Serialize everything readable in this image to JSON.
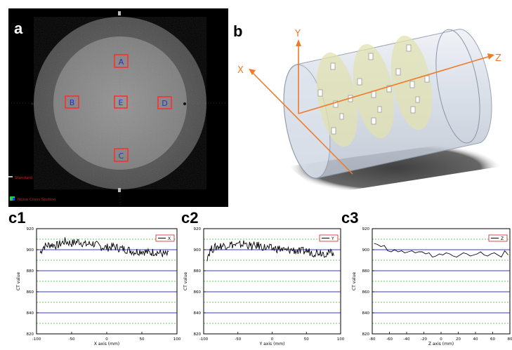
{
  "figure": {
    "labels": {
      "a": "a",
      "b": "b",
      "c1": "c1",
      "c2": "c2",
      "c3": "c3"
    }
  },
  "ct_image": {
    "rois": [
      "A",
      "B",
      "E",
      "D",
      "C"
    ],
    "overlay_text": [
      "Standard",
      "Noise Cross Section"
    ],
    "colors": {
      "background": "#000000",
      "phantom_outer": "#5a5a5a",
      "phantom_inner": "#8a8a8a",
      "roi_box": "#ff2a2a",
      "roi_text": "#2233cc",
      "overlay_text": "#d02020"
    }
  },
  "diagram_3d": {
    "axis_labels": {
      "x": "X",
      "y": "Y",
      "z": "Z"
    },
    "colors": {
      "axis": "#f07a2a",
      "cylinder": "#c9d3e0",
      "disk": "#e2e2b0",
      "shadow": "#303030"
    }
  },
  "chart_data": [
    {
      "type": "line",
      "xlabel": "X axis (mm)",
      "ylabel": "CT value",
      "xlim": [
        -100,
        100
      ],
      "ylim": [
        820,
        920
      ],
      "xticks": [
        "-100",
        "-50",
        "0",
        "50",
        "100"
      ],
      "yticks": [
        "920",
        "900",
        "880",
        "860",
        "840",
        "820"
      ],
      "legend": "X",
      "legend_position": "top-right",
      "blue_lines": [
        900,
        880,
        860,
        840
      ],
      "green_dashed_lines": [
        910,
        890,
        870,
        850,
        830
      ],
      "series": [
        {
          "x": [
            -95,
            -90,
            -80,
            -70,
            -60,
            -50,
            -40,
            -30,
            -20,
            -10,
            0,
            10,
            20,
            30,
            40,
            50,
            60,
            70,
            80,
            88
          ],
          "y": [
            897,
            903,
            905,
            904,
            908,
            906,
            908,
            905,
            906,
            903,
            902,
            903,
            901,
            900,
            898,
            899,
            897,
            898,
            896,
            895
          ]
        }
      ]
    },
    {
      "type": "line",
      "xlabel": "Y axis (mm)",
      "ylabel": "CT value",
      "xlim": [
        -100,
        100
      ],
      "ylim": [
        820,
        920
      ],
      "xticks": [
        "-100",
        "-50",
        "0",
        "50",
        "100"
      ],
      "yticks": [
        "920",
        "900",
        "880",
        "860",
        "840",
        "820"
      ],
      "legend": "Y",
      "legend_position": "top-right",
      "blue_lines": [
        900,
        880,
        860,
        840
      ],
      "green_dashed_lines": [
        910,
        890,
        870,
        850,
        830
      ],
      "series": [
        {
          "x": [
            -95,
            -90,
            -80,
            -70,
            -60,
            -50,
            -40,
            -30,
            -20,
            -10,
            0,
            10,
            20,
            30,
            40,
            50,
            60,
            70,
            80,
            90
          ],
          "y": [
            893,
            900,
            903,
            904,
            905,
            904,
            906,
            903,
            904,
            902,
            901,
            901,
            899,
            900,
            898,
            899,
            897,
            898,
            896,
            898
          ]
        }
      ]
    },
    {
      "type": "line",
      "xlabel": "Z axis (mm)",
      "ylabel": "CT value",
      "xlim": [
        -80,
        80
      ],
      "ylim": [
        820,
        920
      ],
      "xticks": [
        "-80",
        "-60",
        "-40",
        "-20",
        "0",
        "20",
        "40",
        "60",
        "80"
      ],
      "yticks": [
        "920",
        "900",
        "880",
        "860",
        "840",
        "820"
      ],
      "legend": "Z",
      "legend_position": "top-right",
      "blue_lines": [
        900,
        880,
        860,
        840
      ],
      "green_dashed_lines": [
        910,
        890,
        870,
        850,
        830
      ],
      "series": [
        {
          "x": [
            -78,
            -74,
            -70,
            -66,
            -62,
            -58,
            -54,
            -50,
            -46,
            -42,
            -38,
            -34,
            -30,
            -26,
            -22,
            -18,
            -14,
            -10,
            -6,
            -2,
            2,
            6,
            10,
            14,
            18,
            22,
            26,
            30,
            34,
            38,
            42,
            46,
            50,
            54,
            58,
            62,
            66,
            70,
            74,
            78
          ],
          "y": [
            906,
            905,
            903,
            904,
            899,
            898,
            900,
            898,
            899,
            897,
            898,
            899,
            897,
            898,
            898,
            896,
            897,
            893,
            894,
            896,
            895,
            897,
            896,
            894,
            893,
            895,
            897,
            896,
            894,
            895,
            896,
            898,
            895,
            894,
            896,
            897,
            895,
            893,
            899,
            895
          ]
        }
      ]
    }
  ]
}
